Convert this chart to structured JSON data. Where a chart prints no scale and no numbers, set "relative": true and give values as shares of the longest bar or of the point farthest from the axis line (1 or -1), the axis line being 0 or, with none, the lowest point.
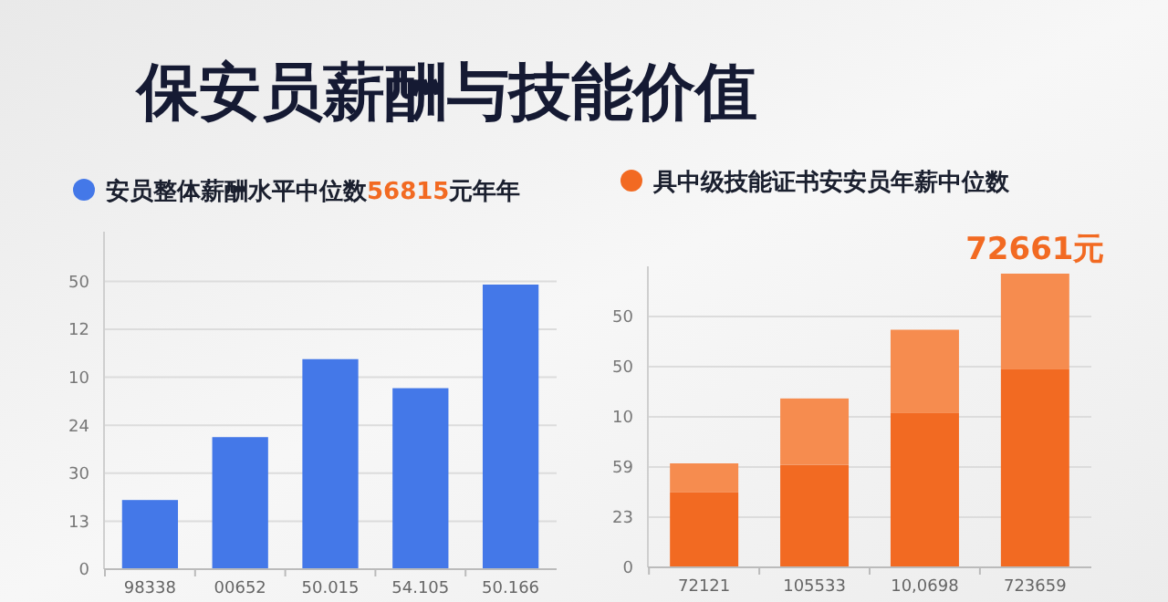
{
  "chart_data": [
    {
      "type": "bar",
      "title": "保安员薪酬与技能价值",
      "categories": [
        "98338",
        "00652",
        "50.015",
        "54.105",
        "50.166"
      ],
      "series": [
        {
          "name": "安员整体薪酬水平中位数56815元年年",
          "color": "#4478e8",
          "values": [
            0.243,
            0.464,
            0.738,
            0.636,
            1
          ]
        }
      ],
      "relative": true,
      "annotations": [
        "0",
        "13",
        "30",
        "24",
        "10",
        "12",
        "50"
      ],
      "grid": true,
      "legend": "top"
    },
    {
      "type": "bar",
      "stacked": true,
      "categories": [
        "72121",
        "105533",
        "10,0698",
        "723659"
      ],
      "series": [
        {
          "name": "具中级技能证书安安员年薪中位数",
          "color": "#f26a22",
          "values": [
            0.255,
            0.349,
            0.525,
            0.674
          ]
        },
        {
          "color": "#f68c4f",
          "values": [
            0.099,
            0.226,
            0.284,
            0.326
          ]
        }
      ],
      "relative": true,
      "annotations": [
        "0",
        "23",
        "59",
        "10",
        "50",
        "50",
        {
          "text": "72661元",
          "x": "723659",
          "y": 1
        }
      ],
      "grid": true,
      "legend": "top"
    }
  ]
}
